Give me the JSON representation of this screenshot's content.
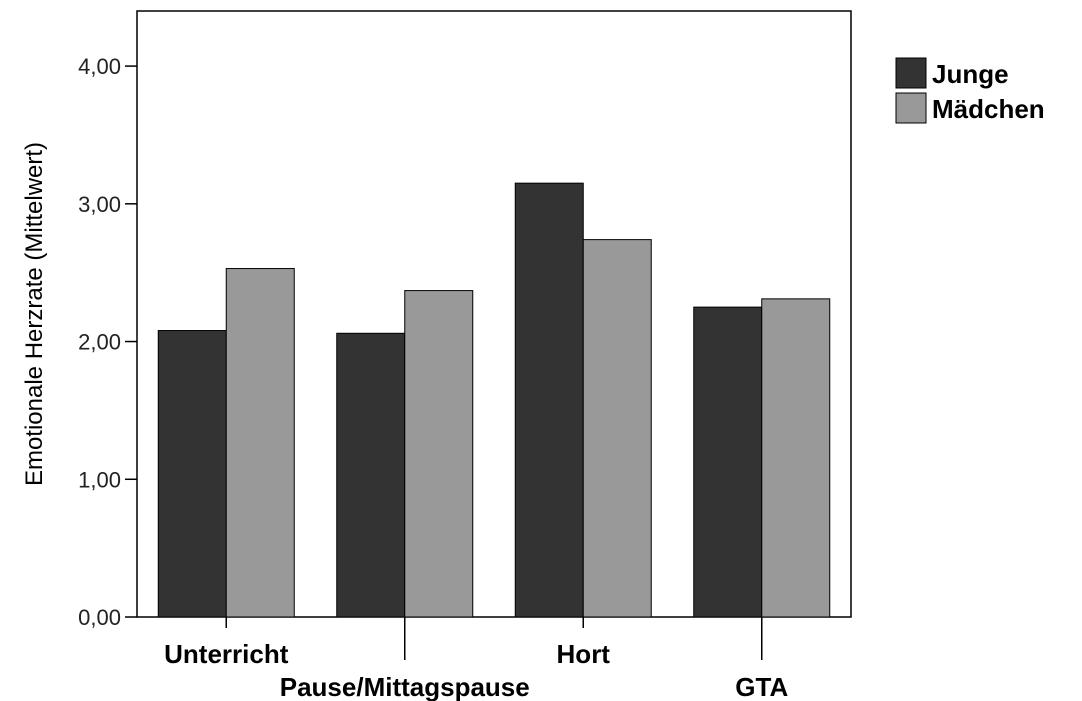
{
  "chart_data": {
    "type": "bar",
    "categories": [
      "Unterricht",
      "Pause/Mittagspause",
      "Hort",
      "GTA"
    ],
    "series": [
      {
        "name": "Junge",
        "values": [
          2.08,
          2.06,
          3.15,
          2.25
        ],
        "color": "#333333"
      },
      {
        "name": "Mädchen",
        "values": [
          2.53,
          2.37,
          2.74,
          2.31
        ],
        "color": "#999999"
      }
    ],
    "title": "",
    "xlabel": "",
    "ylabel": "Emotionale Herzrate (Mittelwert)",
    "ylim": [
      0,
      4.4
    ],
    "yticks": [
      0,
      1,
      2,
      3,
      4
    ],
    "ytick_labels": [
      "0,00",
      "1,00",
      "2,00",
      "3,00",
      "4,00"
    ],
    "grid": false,
    "legend_position": "top-right, outside plot"
  }
}
